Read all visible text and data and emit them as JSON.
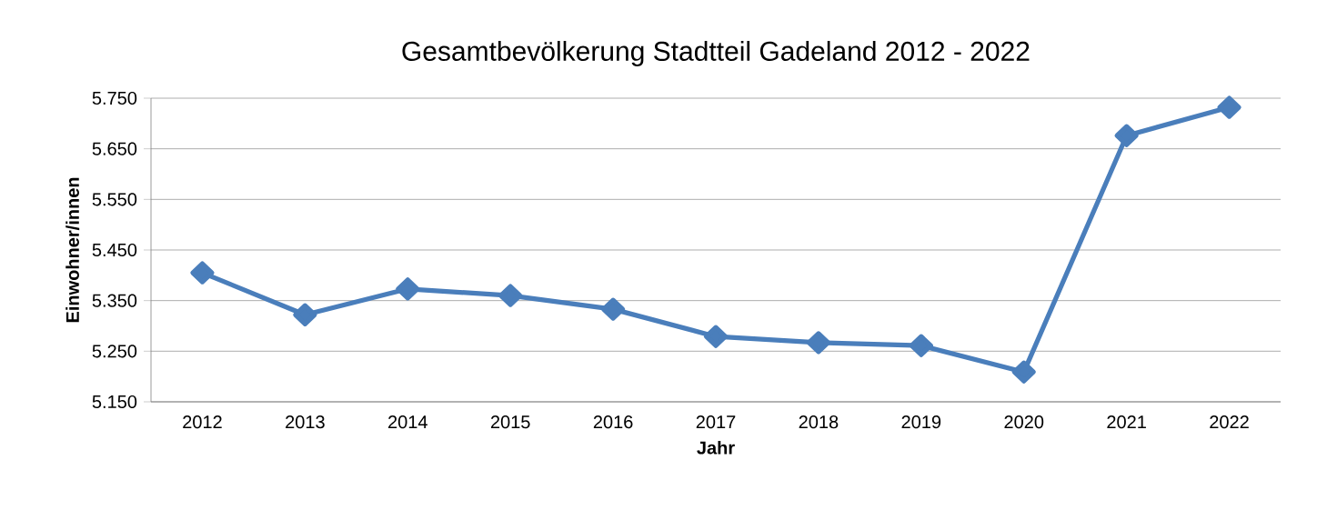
{
  "chart_data": {
    "type": "line",
    "title": "Gesamtbevölkerung Stadtteil Gadeland 2012 - 2022",
    "xlabel": "Jahr",
    "ylabel": "Einwohner/innen",
    "categories": [
      "2012",
      "2013",
      "2014",
      "2015",
      "2016",
      "2017",
      "2018",
      "2019",
      "2020",
      "2021",
      "2022"
    ],
    "values": [
      5405,
      5322,
      5373,
      5360,
      5333,
      5279,
      5267,
      5261,
      5209,
      5676,
      5732
    ],
    "color": "#4a7ebb",
    "marker": "diamond",
    "line_style": "solid",
    "grid": "y",
    "ylim": [
      5150,
      5750
    ],
    "yticks": [
      {
        "value": 5150,
        "label": "5.150"
      },
      {
        "value": 5250,
        "label": "5.250"
      },
      {
        "value": 5350,
        "label": "5.350"
      },
      {
        "value": 5450,
        "label": "5.450"
      },
      {
        "value": 5550,
        "label": "5.550"
      },
      {
        "value": 5650,
        "label": "5.650"
      },
      {
        "value": 5750,
        "label": "5.750"
      }
    ]
  }
}
